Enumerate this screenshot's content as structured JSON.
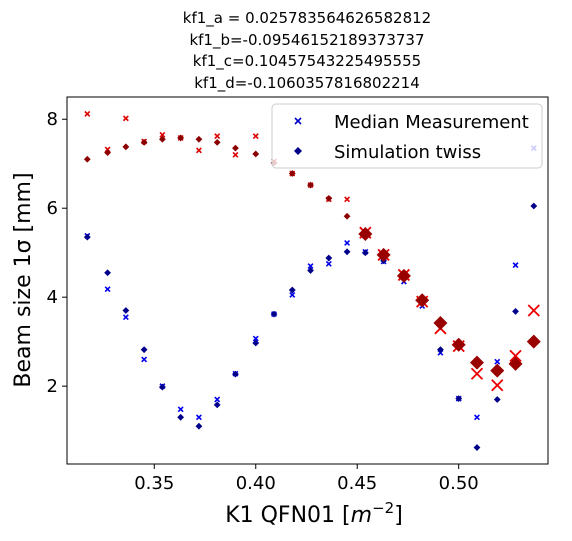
{
  "chart_data": {
    "type": "scatter",
    "title_lines": [
      "kf1_a = 0.025783564626582812",
      "kf1_b=-0.09546152189373737",
      "kf1_c=0.10457543225495555",
      "kf1_d=-0.1060357816802214"
    ],
    "xlabel_main": "K1 QFN01 [",
    "xlabel_unit": "m",
    "xlabel_exp": "−2",
    "xlabel_close": "]",
    "ylabel": "Beam size 1σ [mm]",
    "xlim": [
      0.307,
      0.544
    ],
    "ylim": [
      0.25,
      8.5
    ],
    "xticks": [
      0.35,
      0.4,
      0.45,
      0.5
    ],
    "xtick_labels": [
      "0.35",
      "0.40",
      "0.45",
      "0.50"
    ],
    "yticks": [
      2,
      4,
      6,
      8
    ],
    "ytick_labels": [
      "2",
      "4",
      "6",
      "8"
    ],
    "legend": {
      "position": "top-right",
      "entries": [
        {
          "label": "Median Measurement",
          "marker": "x",
          "color": "#0000cc"
        },
        {
          "label": "Simulation twiss",
          "marker": "diamond",
          "color": "#00008b"
        }
      ]
    },
    "series": [
      {
        "kind": "measurement",
        "marker": "x",
        "color": "#0000ee",
        "size": "small",
        "points": [
          [
            0.317,
            5.38
          ],
          [
            0.327,
            4.18
          ],
          [
            0.336,
            3.55
          ],
          [
            0.345,
            2.6
          ],
          [
            0.354,
            2.0
          ],
          [
            0.363,
            1.48
          ],
          [
            0.372,
            1.3
          ],
          [
            0.381,
            1.7
          ],
          [
            0.39,
            2.28
          ],
          [
            0.4,
            3.07
          ],
          [
            0.409,
            3.62
          ],
          [
            0.418,
            4.05
          ],
          [
            0.427,
            4.7
          ],
          [
            0.436,
            4.75
          ],
          [
            0.445,
            5.22
          ],
          [
            0.454,
            5.02
          ],
          [
            0.463,
            4.8
          ],
          [
            0.473,
            4.35
          ],
          [
            0.482,
            3.8
          ],
          [
            0.491,
            2.75
          ],
          [
            0.5,
            1.72
          ],
          [
            0.509,
            1.3
          ],
          [
            0.519,
            2.55
          ],
          [
            0.528,
            4.72
          ],
          [
            0.537,
            7.35
          ]
        ]
      },
      {
        "kind": "simulation",
        "marker": "diamond",
        "color": "#00008b",
        "size": "small",
        "points": [
          [
            0.317,
            5.35
          ],
          [
            0.327,
            4.55
          ],
          [
            0.336,
            3.7
          ],
          [
            0.345,
            2.82
          ],
          [
            0.354,
            1.98
          ],
          [
            0.363,
            1.3
          ],
          [
            0.372,
            1.1
          ],
          [
            0.381,
            1.58
          ],
          [
            0.39,
            2.27
          ],
          [
            0.4,
            2.97
          ],
          [
            0.409,
            3.62
          ],
          [
            0.418,
            4.16
          ],
          [
            0.427,
            4.6
          ],
          [
            0.436,
            4.88
          ],
          [
            0.445,
            5.02
          ],
          [
            0.454,
            5.0
          ],
          [
            0.463,
            4.82
          ],
          [
            0.473,
            4.45
          ],
          [
            0.482,
            3.85
          ],
          [
            0.491,
            2.82
          ],
          [
            0.5,
            1.72
          ],
          [
            0.509,
            0.62
          ],
          [
            0.519,
            1.7
          ],
          [
            0.528,
            3.68
          ],
          [
            0.537,
            6.05
          ]
        ]
      },
      {
        "kind": "measurement",
        "marker": "x",
        "color": "#dd0000",
        "size": "small",
        "points": [
          [
            0.317,
            8.12
          ],
          [
            0.327,
            7.32
          ],
          [
            0.336,
            8.02
          ],
          [
            0.345,
            7.5
          ],
          [
            0.354,
            7.65
          ],
          [
            0.363,
            7.58
          ],
          [
            0.372,
            7.3
          ],
          [
            0.381,
            7.62
          ],
          [
            0.39,
            7.2
          ],
          [
            0.4,
            7.62
          ],
          [
            0.409,
            7.05
          ],
          [
            0.418,
            6.78
          ],
          [
            0.427,
            6.52
          ],
          [
            0.436,
            6.2
          ],
          [
            0.445,
            6.2
          ]
        ]
      },
      {
        "kind": "simulation",
        "marker": "diamond",
        "color": "#8b0000",
        "size": "small",
        "points": [
          [
            0.317,
            7.1
          ],
          [
            0.327,
            7.25
          ],
          [
            0.336,
            7.38
          ],
          [
            0.345,
            7.48
          ],
          [
            0.354,
            7.55
          ],
          [
            0.363,
            7.58
          ],
          [
            0.372,
            7.55
          ],
          [
            0.381,
            7.48
          ],
          [
            0.39,
            7.35
          ],
          [
            0.4,
            7.22
          ],
          [
            0.409,
            7.02
          ],
          [
            0.418,
            6.78
          ],
          [
            0.427,
            6.52
          ],
          [
            0.436,
            6.22
          ],
          [
            0.445,
            5.82
          ]
        ]
      },
      {
        "kind": "measurement",
        "marker": "x",
        "color": "#ee0000",
        "size": "large",
        "points": [
          [
            0.454,
            5.45
          ],
          [
            0.463,
            4.95
          ],
          [
            0.473,
            4.5
          ],
          [
            0.482,
            3.9
          ],
          [
            0.491,
            3.3
          ],
          [
            0.5,
            2.9
          ],
          [
            0.509,
            2.28
          ],
          [
            0.519,
            2.02
          ],
          [
            0.528,
            2.68
          ],
          [
            0.537,
            3.7
          ]
        ]
      },
      {
        "kind": "simulation",
        "marker": "diamond",
        "color": "#990000",
        "size": "large",
        "points": [
          [
            0.454,
            5.42
          ],
          [
            0.463,
            4.95
          ],
          [
            0.473,
            4.48
          ],
          [
            0.482,
            3.93
          ],
          [
            0.491,
            3.42
          ],
          [
            0.5,
            2.93
          ],
          [
            0.509,
            2.53
          ],
          [
            0.519,
            2.35
          ],
          [
            0.528,
            2.5
          ],
          [
            0.537,
            3.0
          ]
        ]
      }
    ]
  }
}
